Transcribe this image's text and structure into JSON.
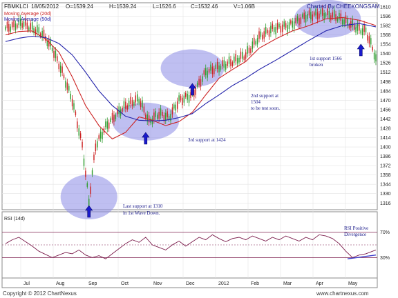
{
  "header": {
    "symbol": "FBMKLCI",
    "date": "18/05/2012",
    "open": "O=1539.24",
    "high": "H=1539.24",
    "low": "L=1526.6",
    "close": "C=1532.46",
    "volume": "V=1.06B",
    "credit": "Charted By CHEEKONGSAM"
  },
  "legend": [
    {
      "label": "Moving Average (20d)",
      "color": "#cc2222"
    },
    {
      "label": "Moving Average (50d)",
      "color": "#2222aa"
    }
  ],
  "rsi_label": "RSI (14d)",
  "footer": {
    "copyright": "Copyright © 2012 ChartNexus",
    "website": "www.chartnexus.com"
  },
  "annotations": {
    "a1_l1": "Last support at 1310",
    "a1_l2": "in 1st Wave Down.",
    "a2": "3rd support at 1424",
    "a3_l1": "2nd support at",
    "a3_l2": "1504",
    "a3_l3": "to be test soon.",
    "a4_l1": "1st support 1566",
    "a4_l2": "broken",
    "a5_l1": "RSI Positive",
    "a5_l2": "Divergence"
  },
  "chart_data": [
    {
      "type": "candlestick",
      "title": "FBMKLCI",
      "y_ticks": [
        1316,
        1330,
        1344,
        1358,
        1372,
        1386,
        1400,
        1414,
        1428,
        1442,
        1456,
        1470,
        1484,
        1498,
        1512,
        1526,
        1540,
        1554,
        1568,
        1582,
        1596,
        1610
      ],
      "ylim": [
        1308,
        1612
      ],
      "x_ticks": [
        "Jul",
        "Aug",
        "Sep",
        "Oct",
        "Nov",
        "Dec",
        "2012",
        "Feb",
        "Mar",
        "Apr",
        "May"
      ],
      "series": [
        {
          "name": "Moving Average (20d)",
          "color": "#cc2222",
          "x": [
            0,
            8,
            16,
            24,
            32,
            40,
            48,
            56,
            64,
            72,
            80,
            88,
            96,
            104,
            112,
            120,
            128,
            136,
            144,
            152,
            162,
            172,
            182,
            192,
            202,
            212,
            222
          ],
          "values": [
            1568,
            1573,
            1574,
            1562,
            1542,
            1505,
            1462,
            1432,
            1412,
            1422,
            1445,
            1440,
            1432,
            1438,
            1452,
            1478,
            1503,
            1516,
            1528,
            1548,
            1562,
            1574,
            1582,
            1592,
            1594,
            1590,
            1582
          ]
        },
        {
          "name": "Moving Average (50d)",
          "color": "#2222aa",
          "x": [
            0,
            8,
            16,
            24,
            32,
            40,
            48,
            56,
            64,
            72,
            80,
            88,
            96,
            104,
            112,
            120,
            128,
            136,
            144,
            152,
            162,
            172,
            182,
            192,
            202,
            212,
            222
          ],
          "values": [
            1558,
            1563,
            1566,
            1564,
            1555,
            1538,
            1512,
            1484,
            1462,
            1446,
            1440,
            1439,
            1440,
            1444,
            1450,
            1465,
            1478,
            1492,
            1503,
            1516,
            1530,
            1545,
            1560,
            1574,
            1582,
            1585,
            1580
          ]
        }
      ]
    },
    {
      "type": "line",
      "title": "RSI (14d)",
      "y_ticks": [
        "70%",
        "30%"
      ],
      "ylim": [
        0,
        100
      ],
      "series": [
        {
          "name": "RSI (14d)",
          "color": "#7a1a4a",
          "x": [
            0,
            4,
            8,
            12,
            16,
            20,
            24,
            28,
            32,
            36,
            40,
            44,
            48,
            52,
            56,
            60,
            64,
            68,
            72,
            76,
            80,
            84,
            88,
            92,
            96,
            100,
            104,
            108,
            112,
            116,
            120,
            124,
            128,
            132,
            136,
            140,
            144,
            148,
            152,
            156,
            160,
            164,
            168,
            172,
            176,
            180,
            184,
            188,
            192,
            196,
            200,
            204,
            208,
            212,
            216,
            220,
            222
          ],
          "values": [
            52,
            58,
            62,
            55,
            48,
            40,
            35,
            30,
            34,
            38,
            36,
            42,
            34,
            30,
            33,
            28,
            36,
            44,
            52,
            58,
            54,
            62,
            50,
            46,
            42,
            50,
            56,
            48,
            55,
            62,
            58,
            66,
            60,
            55,
            60,
            62,
            58,
            64,
            60,
            56,
            62,
            58,
            64,
            60,
            56,
            62,
            58,
            66,
            64,
            60,
            52,
            40,
            30,
            34,
            36,
            40,
            42
          ]
        }
      ]
    }
  ]
}
